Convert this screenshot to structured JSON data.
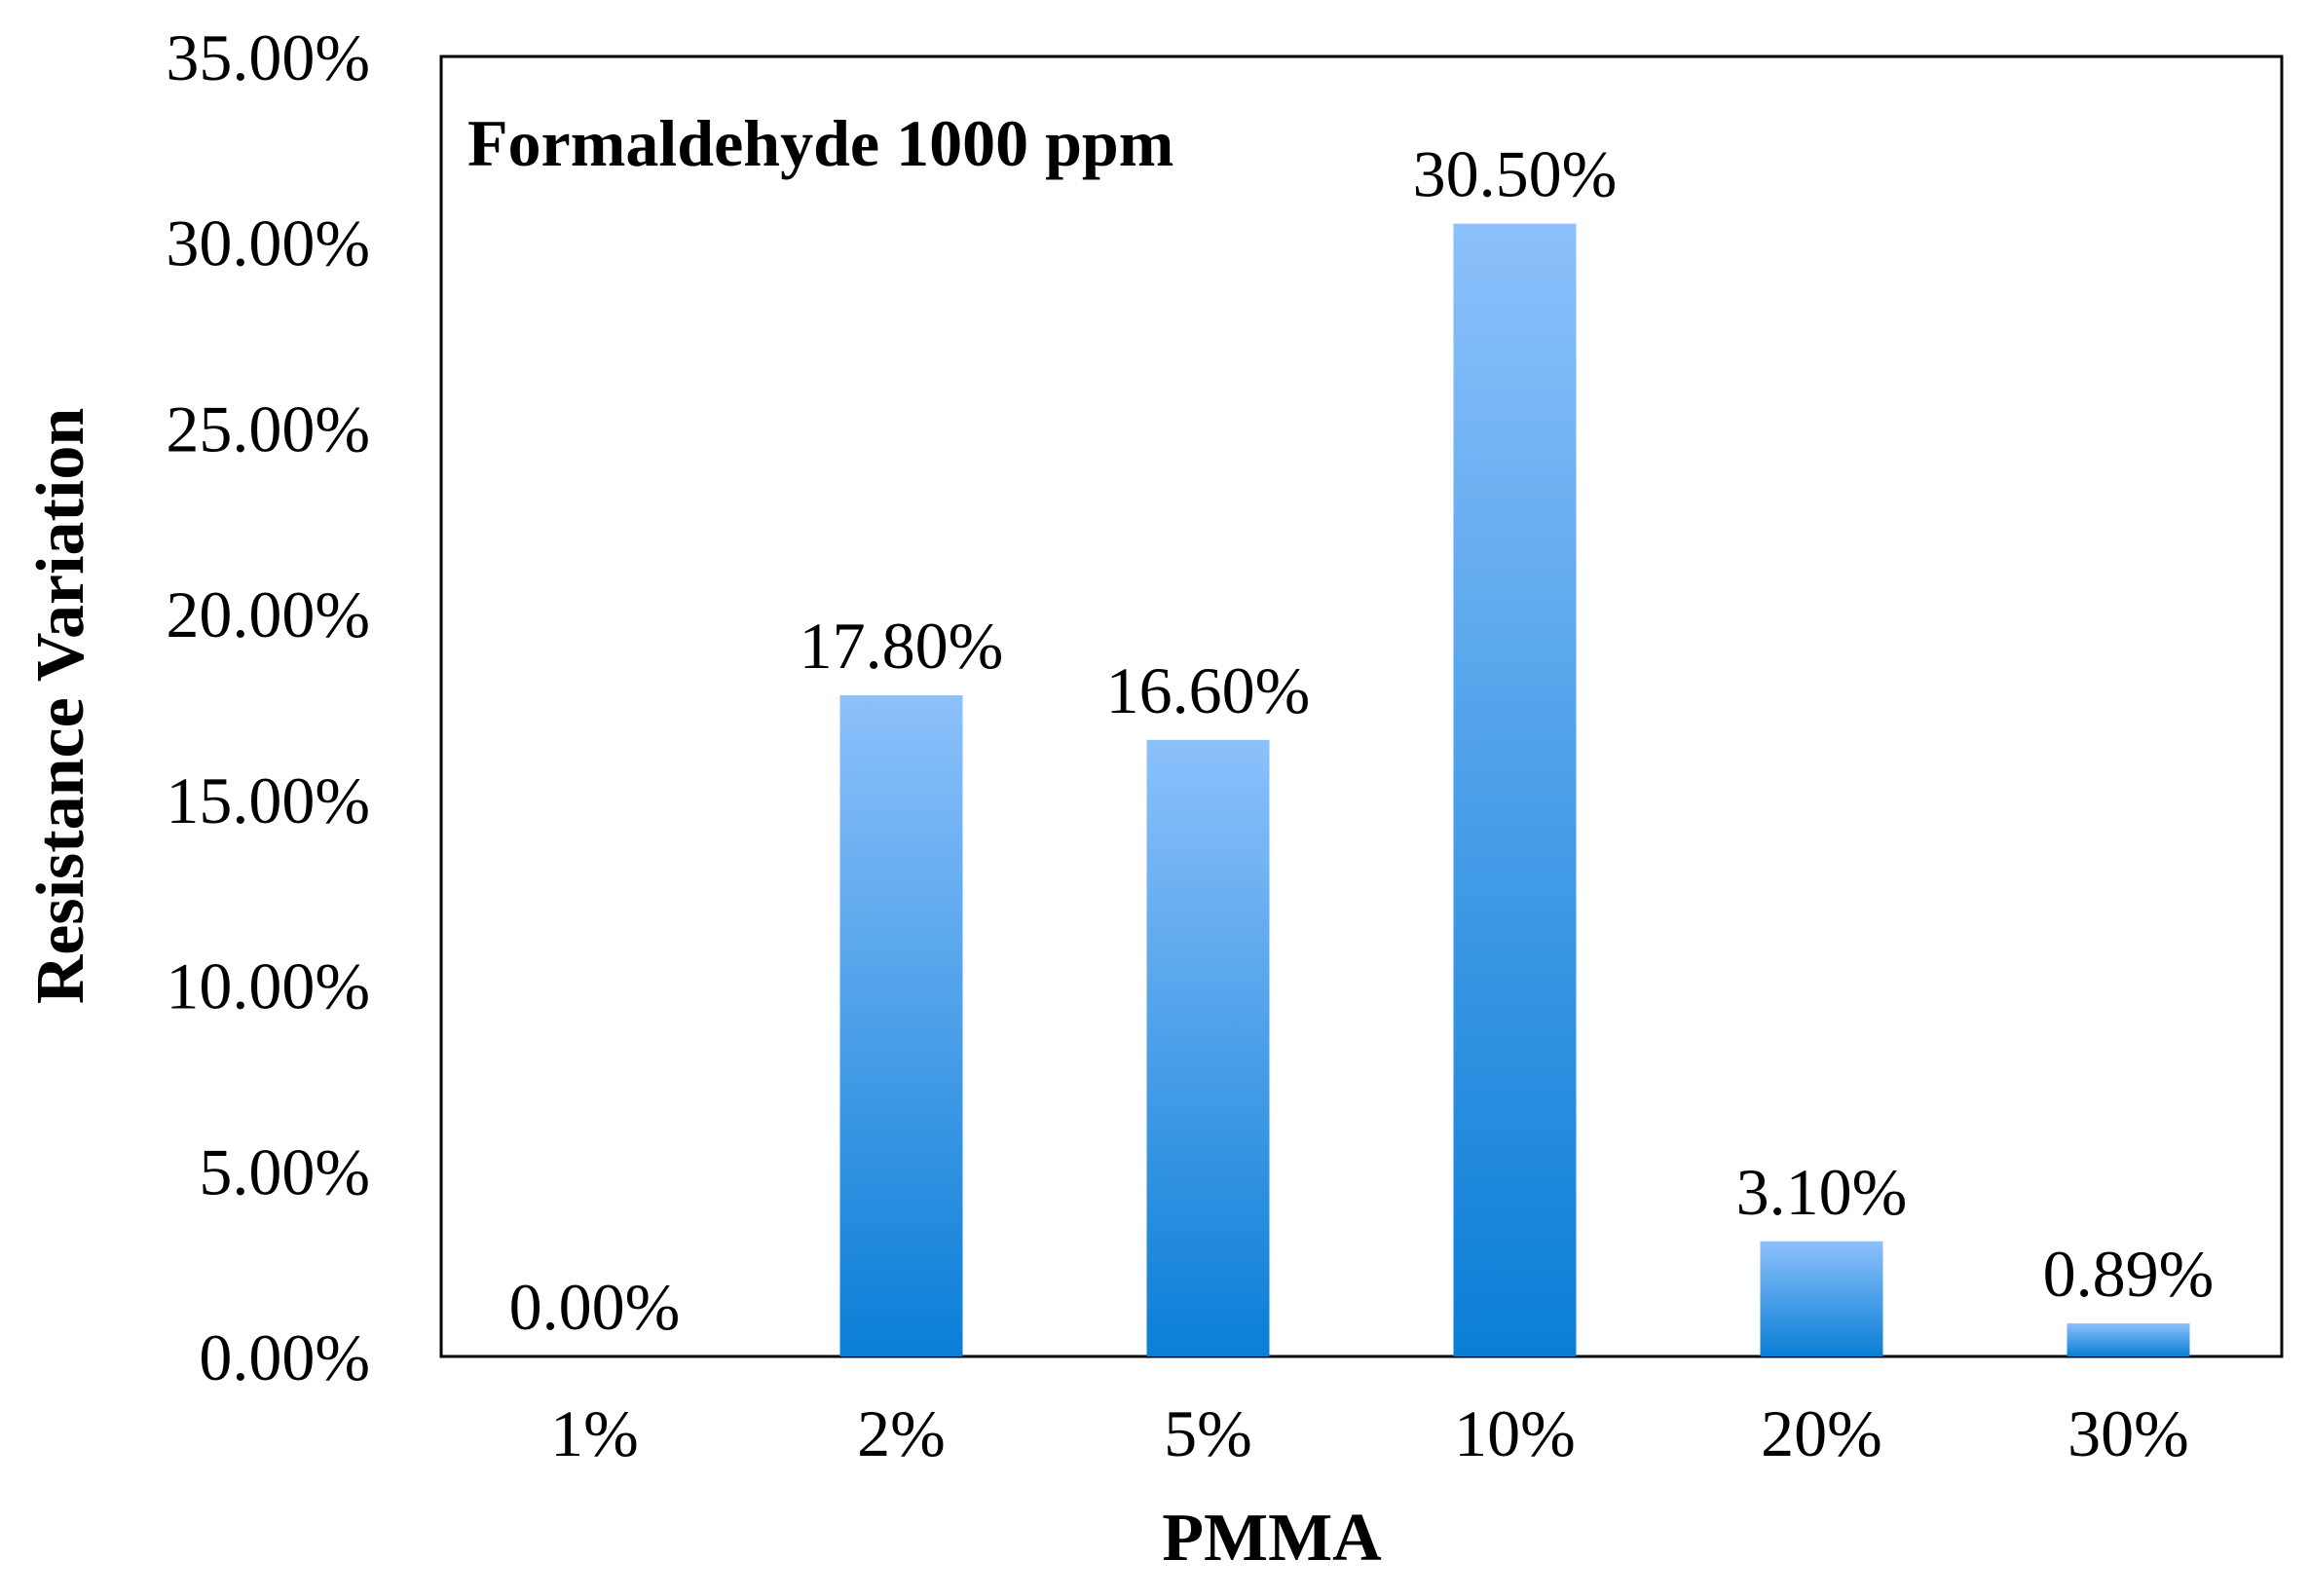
{
  "chart_data": {
    "type": "bar",
    "title": "Formaldehyde 1000 ppm",
    "xlabel": "PMMA",
    "ylabel": "Resistance Variation",
    "categories": [
      "1%",
      "2%",
      "5%",
      "10%",
      "20%",
      "30%"
    ],
    "values": [
      0.0,
      17.8,
      16.6,
      30.5,
      3.1,
      0.89
    ],
    "value_labels": [
      "0.00%",
      "17.80%",
      "16.60%",
      "30.50%",
      "3.10%",
      "0.89%"
    ],
    "ylim": [
      0,
      35
    ],
    "yticks": [
      0,
      5,
      10,
      15,
      20,
      25,
      30,
      35
    ],
    "ytick_labels": [
      "0.00%",
      "5.00%",
      "10.00%",
      "15.00%",
      "20.00%",
      "25.00%",
      "30.00%",
      "35.00%"
    ],
    "grid": false,
    "legend": "none",
    "colors": {
      "bar_top": "#8cc1fb",
      "bar_bottom": "#0a7ed6",
      "axis": "#000000",
      "text": "#000000"
    }
  }
}
